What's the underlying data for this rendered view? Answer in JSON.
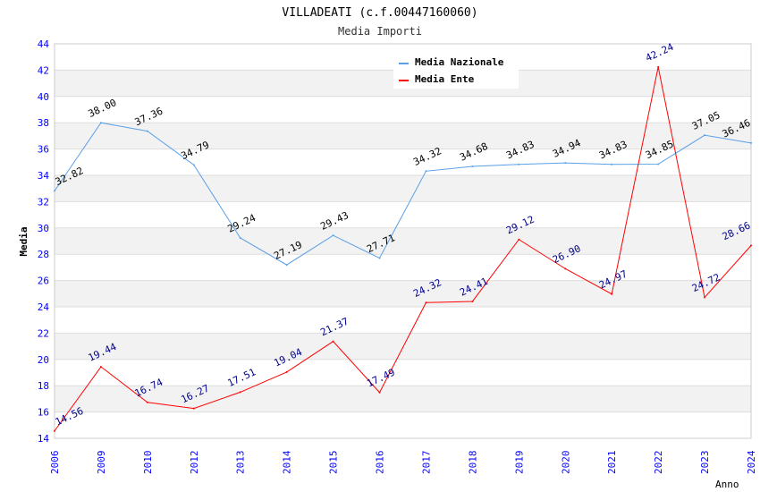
{
  "chart_data": {
    "type": "line",
    "title": "VILLADEATI (c.f.00447160060)",
    "subtitle": "Media Importi",
    "xlabel": "Anno",
    "ylabel": "Media",
    "ylim": [
      14,
      44
    ],
    "yticks": [
      "14",
      "16",
      "18",
      "20",
      "22",
      "24",
      "26",
      "28",
      "30",
      "32",
      "34",
      "36",
      "38",
      "40",
      "42",
      "44"
    ],
    "categories": [
      "2006",
      "2009",
      "2010",
      "2012",
      "2013",
      "2014",
      "2015",
      "2016",
      "2017",
      "2018",
      "2019",
      "2020",
      "2021",
      "2022",
      "2023",
      "2024"
    ],
    "legend_position": "top-right",
    "series": [
      {
        "name": "Media Nazionale",
        "color": "#5aa0e6",
        "label_color": "#000000",
        "values": [
          32.82,
          38.0,
          37.36,
          34.79,
          29.24,
          27.19,
          29.43,
          27.71,
          34.32,
          34.68,
          34.83,
          34.94,
          34.83,
          34.85,
          37.05,
          36.46
        ],
        "labels": [
          "32.82",
          "38.00",
          "37.36",
          "34.79",
          "29.24",
          "27.19",
          "29.43",
          "27.71",
          "34.32",
          "34.68",
          "34.83",
          "34.94",
          "34.83",
          "34.85",
          "37.05",
          "36.46"
        ]
      },
      {
        "name": "Media Ente",
        "color": "#ff0000",
        "label_color": "#00008b",
        "values": [
          14.56,
          19.44,
          16.74,
          16.27,
          17.51,
          19.04,
          21.37,
          17.49,
          24.32,
          24.41,
          29.12,
          26.9,
          24.97,
          42.24,
          24.72,
          28.66
        ],
        "labels": [
          "14.56",
          "19.44",
          "16.74",
          "16.27",
          "17.51",
          "19.04",
          "21.37",
          "17.49",
          "24.32",
          "24.41",
          "29.12",
          "26.90",
          "24.97",
          "42.24",
          "24.72",
          "28.66"
        ]
      }
    ]
  }
}
